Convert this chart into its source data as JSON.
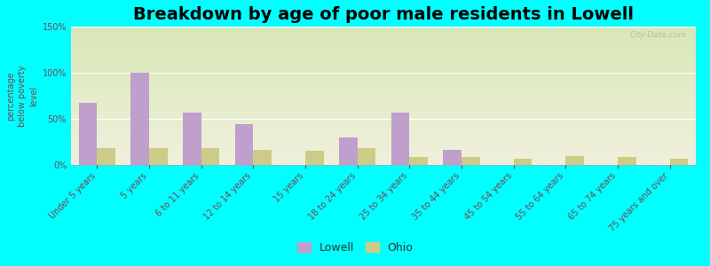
{
  "title": "Breakdown by age of poor male residents in Lowell",
  "ylabel": "percentage\nbelow poverty\nlevel",
  "categories": [
    "Under 5 years",
    "5 years",
    "6 to 11 years",
    "12 to 14 years",
    "15 years",
    "18 to 24 years",
    "25 to 34 years",
    "35 to 44 years",
    "45 to 54 years",
    "55 to 64 years",
    "65 to 74 years",
    "75 years and over"
  ],
  "lowell_values": [
    67,
    100,
    57,
    44,
    0,
    30,
    57,
    16,
    0,
    0,
    0,
    0
  ],
  "ohio_values": [
    18,
    18,
    18,
    16,
    15,
    18,
    9,
    9,
    7,
    10,
    9,
    7
  ],
  "lowell_color": "#bf9fcc",
  "ohio_color": "#cccc88",
  "ylim": [
    0,
    150
  ],
  "yticks": [
    0,
    50,
    100,
    150
  ],
  "ytick_labels": [
    "0%",
    "50%",
    "100%",
    "150%"
  ],
  "plot_bg_top": "#d8e8b8",
  "plot_bg_bottom": "#f0f0dc",
  "outer_bg": "#00ffff",
  "title_fontsize": 14,
  "axis_label_fontsize": 7,
  "tick_label_fontsize": 7,
  "bar_width": 0.35,
  "watermark": "City-Data.com",
  "legend_fontsize": 9
}
